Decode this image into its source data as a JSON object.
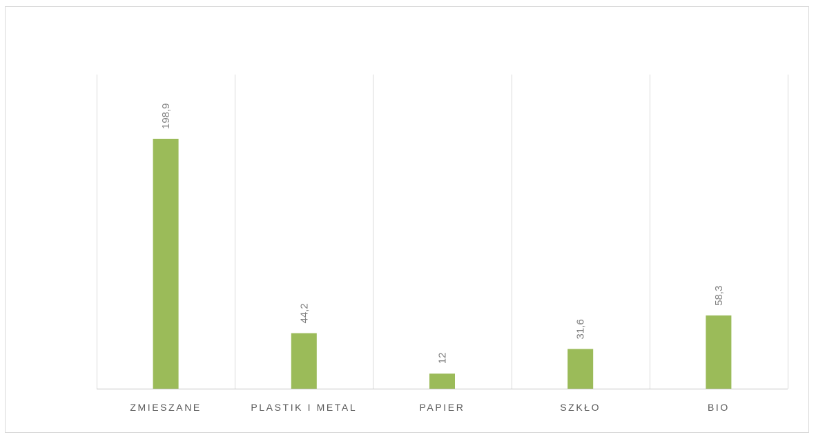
{
  "chart_data": {
    "type": "bar",
    "categories": [
      "ZMIESZANE",
      "PLASTIK I METAL",
      "PAPIER",
      "SZKŁO",
      "BIO"
    ],
    "values": [
      198.9,
      44.2,
      12,
      31.6,
      58.3
    ],
    "value_labels": [
      "198,9",
      "44,2",
      "12",
      "31,6",
      "58,3"
    ],
    "title": "",
    "xlabel": "",
    "ylabel": "",
    "ylim": [
      0,
      250
    ],
    "grid": "vertical category separators",
    "legend": "none",
    "colors": {
      "bar": "#9bbb59",
      "grid": "#d9d9d9",
      "axis": "#bfbfbf"
    }
  }
}
